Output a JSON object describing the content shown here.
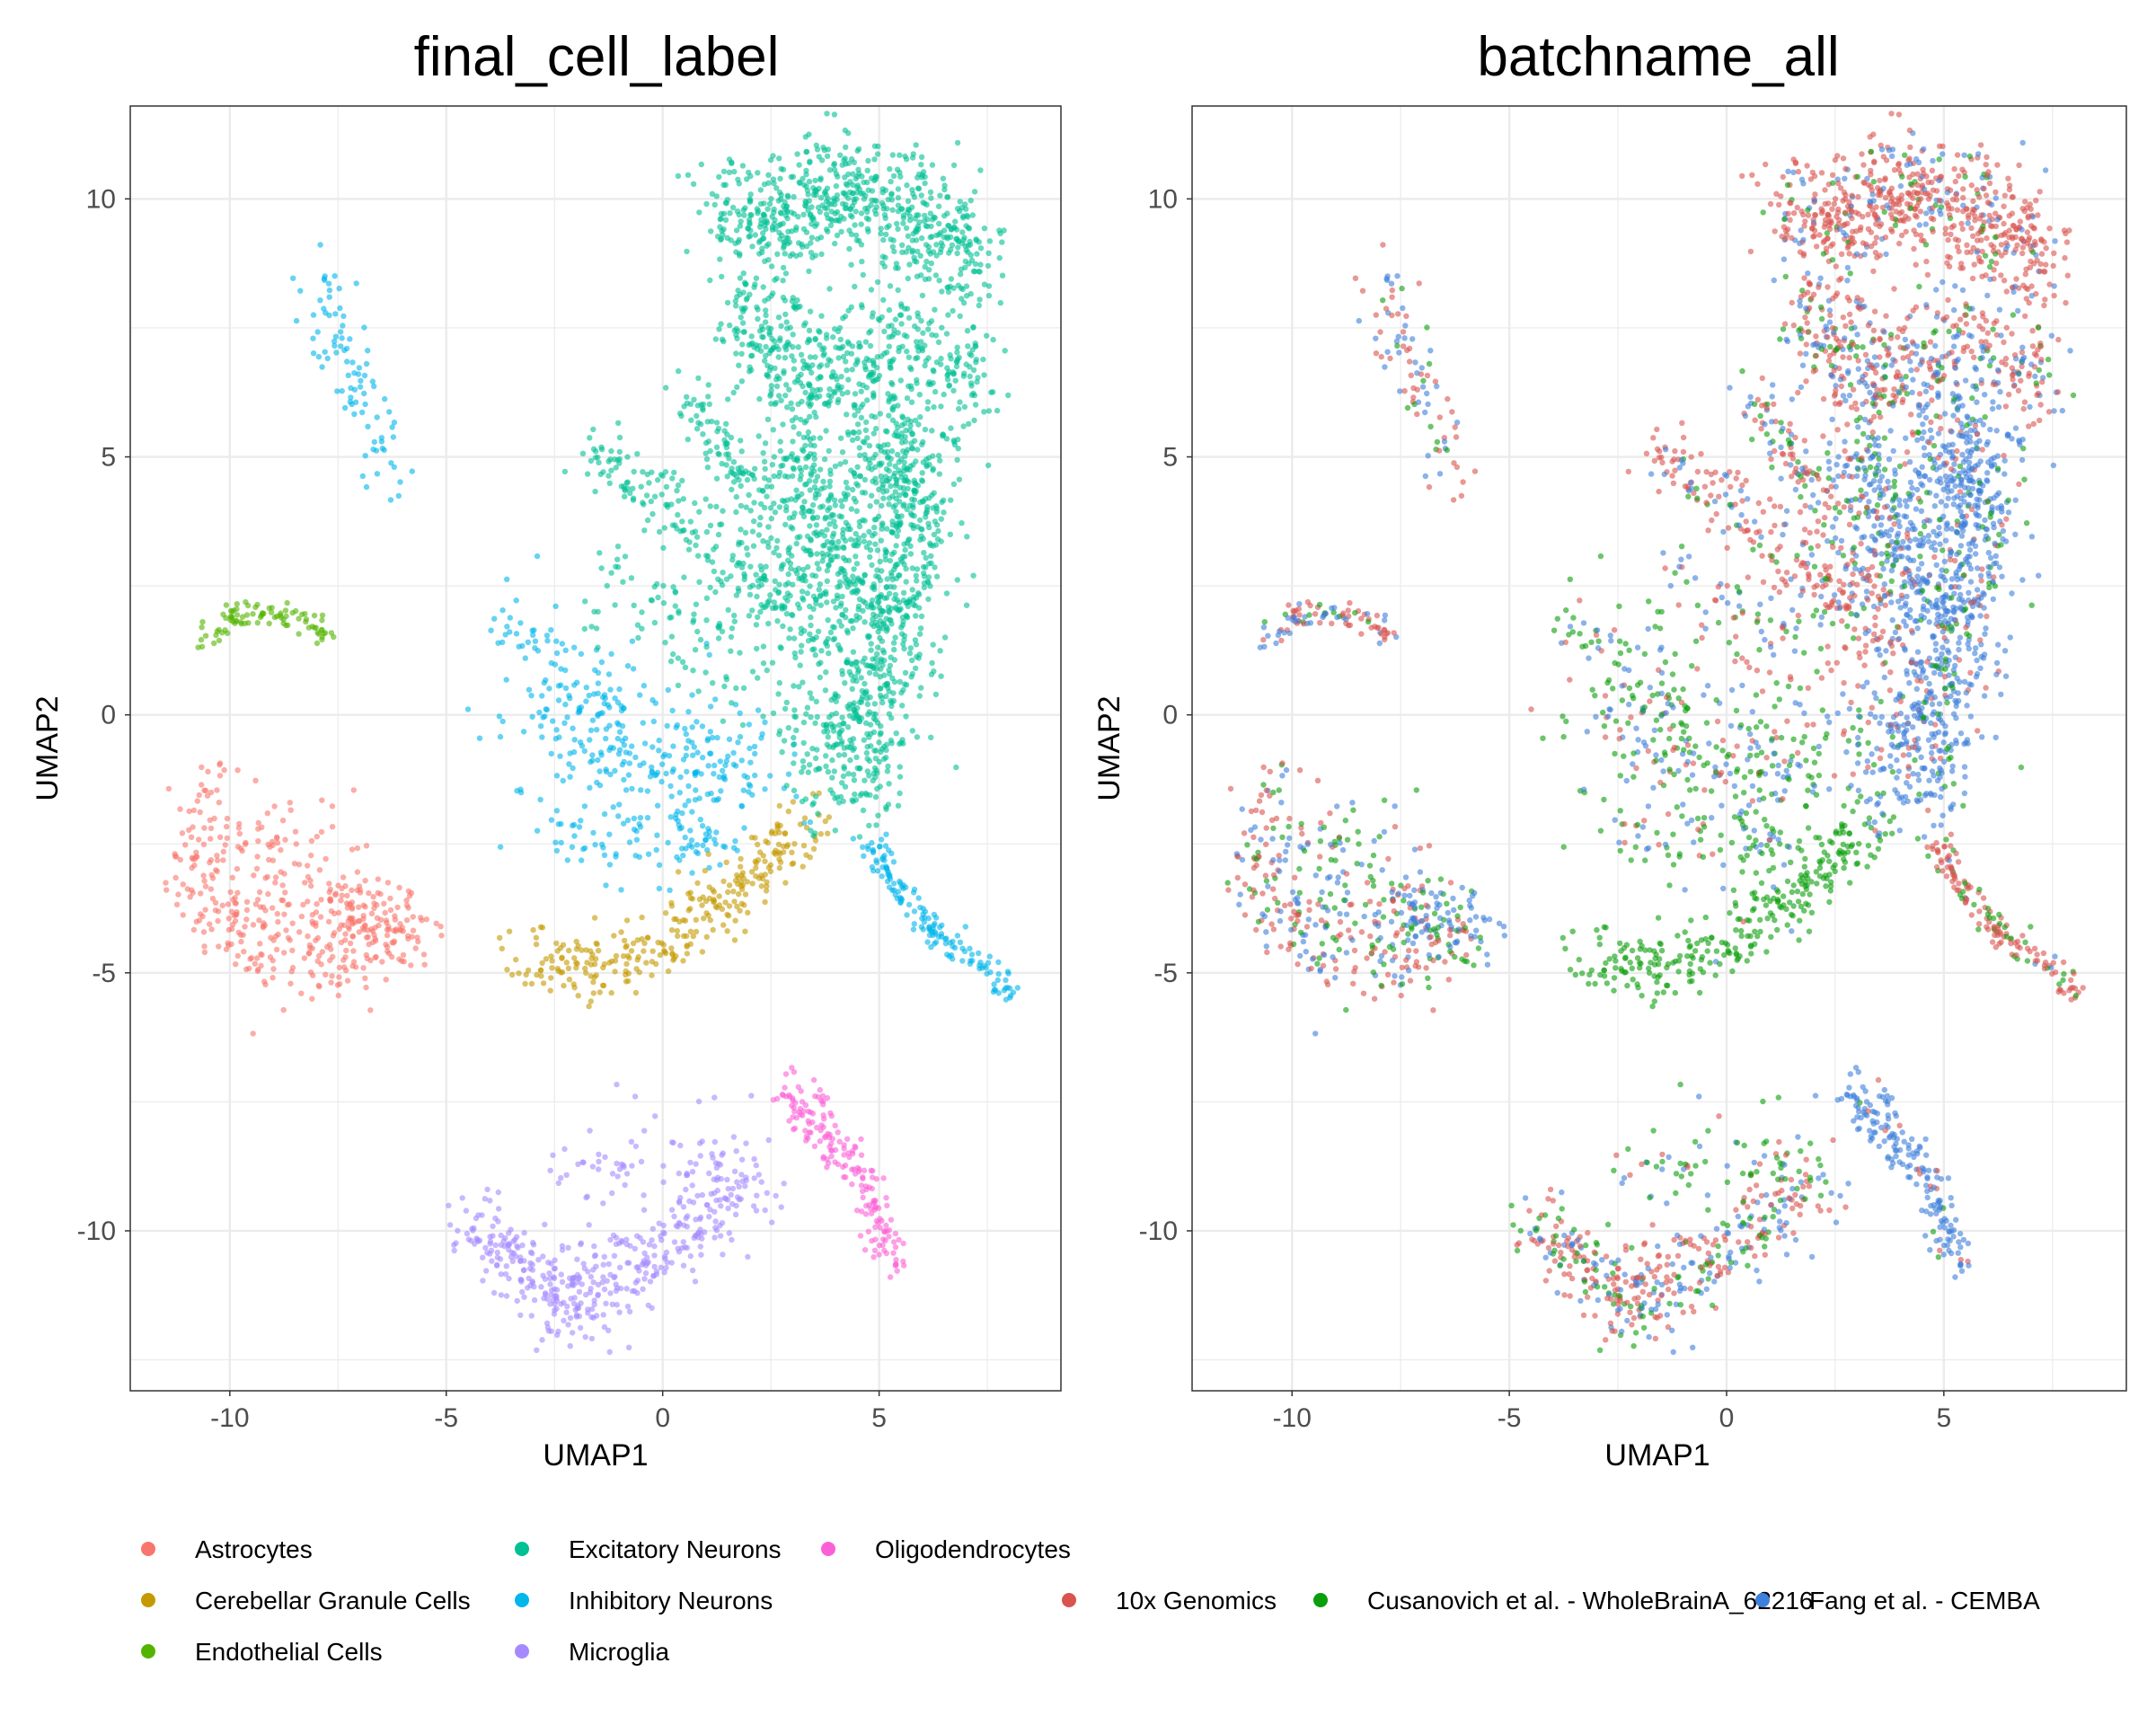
{
  "chart_data": [
    {
      "type": "scatter",
      "title": "final_cell_label",
      "xlabel": "UMAP1",
      "ylabel": "UMAP2",
      "xlim": [
        -12.3,
        9.2
      ],
      "ylim": [
        -13.1,
        11.8
      ],
      "xticks": [
        -10,
        -5,
        0,
        5
      ],
      "yticks": [
        -10,
        -5,
        0,
        5,
        10
      ],
      "xtick_labels": [
        "-10",
        "-5",
        "0",
        "5"
      ],
      "ytick_labels": [
        "-10",
        "-5",
        "0",
        "5",
        "10"
      ],
      "grid": true,
      "legend_position": "bottom",
      "series": [
        {
          "name": "Astrocytes",
          "color": "#F8766D"
        },
        {
          "name": "Cerebellar Granule Cells",
          "color": "#C49A00"
        },
        {
          "name": "Endothelial Cells",
          "color": "#53B400"
        },
        {
          "name": "Excitatory Neurons",
          "color": "#00C094"
        },
        {
          "name": "Inhibitory Neurons",
          "color": "#00B6EB"
        },
        {
          "name": "Microglia",
          "color": "#A58AFF"
        },
        {
          "name": "Oligodendrocytes",
          "color": "#FB61D7"
        }
      ]
    },
    {
      "type": "scatter",
      "title": "batchname_all",
      "xlabel": "UMAP1",
      "ylabel": "UMAP2",
      "xlim": [
        -12.3,
        9.2
      ],
      "ylim": [
        -13.1,
        11.8
      ],
      "xticks": [
        -10,
        -5,
        0,
        5
      ],
      "yticks": [
        -10,
        -5,
        0,
        5,
        10
      ],
      "xtick_labels": [
        "-10",
        "-5",
        "0",
        "5"
      ],
      "ytick_labels": [
        "-10",
        "-5",
        "0",
        "5",
        "10"
      ],
      "grid": true,
      "legend_position": "bottom",
      "series": [
        {
          "name": "10x Genomics",
          "color": "#D9534F"
        },
        {
          "name": "Cusanovich et al. - WholeBrainA_62216",
          "color": "#0A9E0A"
        },
        {
          "name": "Fang et al. - CEMBA",
          "color": "#3E7FDB"
        }
      ]
    }
  ],
  "clusters": [
    {
      "cell": 4,
      "n": 90,
      "pts": [
        [
          -8.2,
          8.6
        ],
        [
          -7.8,
          8.3
        ],
        [
          -7.5,
          7.2
        ],
        [
          -7.1,
          6.5
        ],
        [
          -6.6,
          5.3
        ],
        [
          -6.2,
          4.6
        ]
      ],
      "spread": 0.28,
      "batch": [
        0.45,
        0.15,
        0.4
      ]
    },
    {
      "cell": 2,
      "n": 90,
      "pts": [
        [
          -10.6,
          1.5
        ],
        [
          -10.0,
          1.9
        ],
        [
          -9.2,
          2.0
        ],
        [
          -8.2,
          1.8
        ],
        [
          -7.7,
          1.5
        ]
      ],
      "spread": 0.14,
      "batch": [
        0.4,
        0.1,
        0.5
      ]
    },
    {
      "cell": 0,
      "n": 260,
      "pts": [
        [
          -10.4,
          -1.5
        ],
        [
          -10.8,
          -2.7
        ],
        [
          -10.3,
          -4.0
        ],
        [
          -9.0,
          -4.6
        ],
        [
          -7.5,
          -4.7
        ],
        [
          -6.0,
          -4.3
        ]
      ],
      "spread": 0.42,
      "batch": [
        0.55,
        0.18,
        0.27
      ]
    },
    {
      "cell": 0,
      "n": 110,
      "pts": [
        [
          -9.5,
          -2.6
        ],
        [
          -8.2,
          -3.0
        ],
        [
          -7.0,
          -3.6
        ]
      ],
      "spread": 0.55,
      "batch": [
        0.25,
        0.4,
        0.35
      ]
    },
    {
      "cell": 0,
      "n": 90,
      "pts": [
        [
          -7.4,
          -4.0
        ],
        [
          -6.5,
          -3.9
        ],
        [
          -5.8,
          -4.4
        ]
      ],
      "spread": 0.35,
      "batch": [
        0.1,
        0.2,
        0.7
      ]
    },
    {
      "cell": 4,
      "n": 120,
      "pts": [
        [
          -3.6,
          2.0
        ],
        [
          -2.6,
          1.0
        ],
        [
          -1.4,
          -0.6
        ],
        [
          0.2,
          -1.2
        ],
        [
          1.8,
          -1.3
        ]
      ],
      "spread": 0.55,
      "batch": [
        0.2,
        0.55,
        0.25
      ]
    },
    {
      "cell": 4,
      "n": 200,
      "pts": [
        [
          -2.8,
          0.4
        ],
        [
          -1.2,
          -0.3
        ],
        [
          0.2,
          -0.8
        ],
        [
          1.5,
          -1.0
        ],
        [
          2.4,
          -0.8
        ]
      ],
      "spread": 0.85,
      "batch": [
        0.15,
        0.45,
        0.4
      ]
    },
    {
      "cell": 4,
      "n": 90,
      "pts": [
        [
          -3.0,
          -2.0
        ],
        [
          -1.5,
          -2.5
        ],
        [
          0.5,
          -2.6
        ],
        [
          1.5,
          -2.3
        ]
      ],
      "spread": 0.45,
      "batch": [
        0.1,
        0.55,
        0.35
      ]
    },
    {
      "cell": 1,
      "n": 300,
      "pts": [
        [
          -3.4,
          -4.6
        ],
        [
          -2.0,
          -5.0
        ],
        [
          -0.5,
          -4.6
        ],
        [
          0.8,
          -3.9
        ],
        [
          2.1,
          -3.1
        ],
        [
          3.4,
          -2.0
        ]
      ],
      "spread": 0.32,
      "batch": [
        0.02,
        0.96,
        0.02
      ]
    },
    {
      "cell": 3,
      "n": 650,
      "pts": [
        [
          1.5,
          10.0
        ],
        [
          2.5,
          9.4
        ],
        [
          3.8,
          10.2
        ],
        [
          5.0,
          10.0
        ],
        [
          6.6,
          9.2
        ],
        [
          7.3,
          8.6
        ]
      ],
      "spread": 0.55,
      "batch": [
        0.8,
        0.08,
        0.12
      ]
    },
    {
      "cell": 3,
      "n": 450,
      "pts": [
        [
          1.5,
          8.0
        ],
        [
          2.5,
          7.3
        ],
        [
          3.2,
          6.2
        ],
        [
          5.5,
          7.5
        ],
        [
          6.6,
          7.1
        ],
        [
          7.2,
          6.1
        ]
      ],
      "spread": 0.55,
      "batch": [
        0.55,
        0.12,
        0.33
      ]
    },
    {
      "cell": 3,
      "n": 900,
      "pts": [
        [
          5.0,
          6.5
        ],
        [
          5.5,
          5.0
        ],
        [
          5.5,
          3.5
        ],
        [
          5.0,
          2.0
        ],
        [
          4.8,
          0.5
        ],
        [
          4.5,
          -0.8
        ],
        [
          3.6,
          -1.2
        ]
      ],
      "spread": 0.65,
      "batch": [
        0.1,
        0.12,
        0.78
      ]
    },
    {
      "cell": 3,
      "n": 260,
      "pts": [
        [
          3.0,
          5.2
        ],
        [
          3.7,
          3.8
        ],
        [
          4.4,
          2.4
        ]
      ],
      "spread": 0.5,
      "batch": [
        0.15,
        0.2,
        0.65
      ]
    },
    {
      "cell": 3,
      "n": 220,
      "pts": [
        [
          -1.8,
          5.2
        ],
        [
          -0.5,
          4.6
        ],
        [
          0.8,
          3.6
        ],
        [
          2.2,
          2.5
        ],
        [
          3.5,
          1.2
        ]
      ],
      "spread": 0.32,
      "batch": [
        0.7,
        0.1,
        0.2
      ]
    },
    {
      "cell": 3,
      "n": 150,
      "pts": [
        [
          0.5,
          6.3
        ],
        [
          1.5,
          5.0
        ],
        [
          2.6,
          3.5
        ],
        [
          3.5,
          2.2
        ]
      ],
      "spread": 0.25,
      "batch": [
        0.5,
        0.2,
        0.3
      ]
    },
    {
      "cell": 3,
      "n": 120,
      "pts": [
        [
          -1.5,
          2.6
        ],
        [
          0.5,
          1.8
        ],
        [
          2.0,
          0.8
        ],
        [
          3.5,
          -0.3
        ]
      ],
      "spread": 0.5,
      "batch": [
        0.35,
        0.35,
        0.3
      ]
    },
    {
      "cell": 4,
      "n": 150,
      "pts": [
        [
          4.8,
          -2.5
        ],
        [
          5.6,
          -3.6
        ],
        [
          6.5,
          -4.4
        ],
        [
          7.6,
          -5.0
        ],
        [
          8.1,
          -5.4
        ]
      ],
      "spread": 0.16,
      "batch": [
        0.8,
        0.18,
        0.02
      ]
    },
    {
      "cell": 5,
      "n": 420,
      "pts": [
        [
          -4.5,
          -9.8
        ],
        [
          -3.3,
          -10.6
        ],
        [
          -2.3,
          -11.5
        ],
        [
          -1.0,
          -10.8
        ],
        [
          0.2,
          -10.3
        ],
        [
          1.3,
          -9.6
        ],
        [
          2.0,
          -8.8
        ]
      ],
      "spread": 0.4,
      "batch": [
        0.45,
        0.22,
        0.33
      ]
    },
    {
      "cell": 5,
      "n": 70,
      "pts": [
        [
          -2.5,
          -8.8
        ],
        [
          -0.5,
          -8.4
        ],
        [
          1.0,
          -8.7
        ],
        [
          2.0,
          -8.0
        ]
      ],
      "spread": 0.5,
      "batch": [
        0.2,
        0.6,
        0.2
      ]
    },
    {
      "cell": 6,
      "n": 180,
      "pts": [
        [
          2.8,
          -7.3
        ],
        [
          3.5,
          -7.9
        ],
        [
          4.3,
          -8.6
        ],
        [
          4.9,
          -9.6
        ],
        [
          5.3,
          -10.7
        ]
      ],
      "spread": 0.22,
      "batch": [
        0.08,
        0.05,
        0.87
      ]
    }
  ]
}
